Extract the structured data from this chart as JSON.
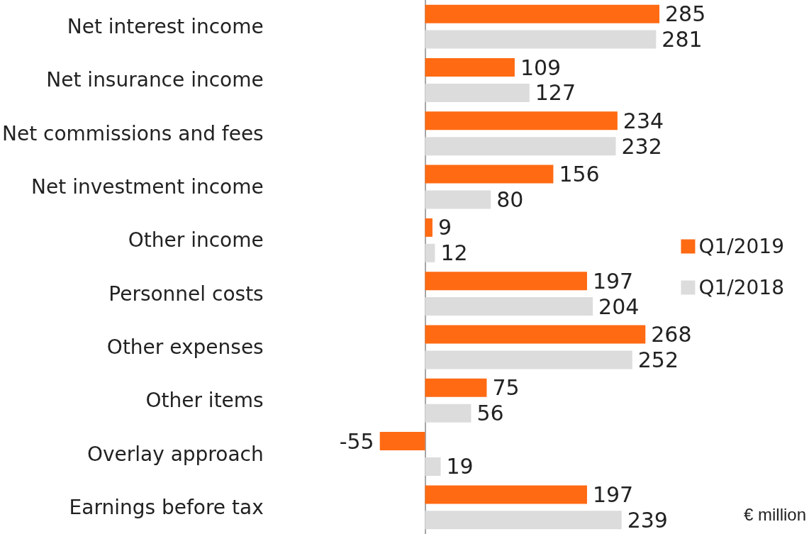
{
  "chart_data": {
    "type": "bar",
    "orientation": "horizontal",
    "data_labels": true,
    "legend": "right",
    "grid": false,
    "categories": [
      "Net interest income",
      "Net insurance income",
      "Net commissions and fees",
      "Net investment income",
      "Other income",
      "Personnel costs",
      "Other expenses",
      "Other items",
      "Overlay approach",
      "Earnings before tax"
    ],
    "series": [
      {
        "name": "Q1/2019",
        "color": "#ff6a13",
        "values": [
          285,
          109,
          234,
          156,
          9,
          197,
          268,
          75,
          -55,
          197
        ]
      },
      {
        "name": "Q1/2018",
        "color": "#dcdcdc",
        "values": [
          281,
          127,
          232,
          80,
          12,
          204,
          252,
          56,
          19,
          239
        ]
      }
    ],
    "annotations": [
      "€ million"
    ]
  }
}
